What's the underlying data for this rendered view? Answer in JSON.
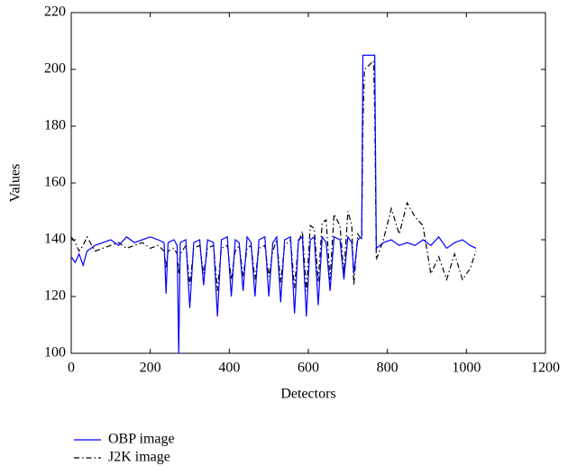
{
  "chart_data": {
    "type": "line",
    "x_label": "Detectors",
    "y_label": "Values",
    "x": [
      0,
      10,
      20,
      30,
      40,
      60,
      80,
      100,
      120,
      140,
      160,
      180,
      200,
      220,
      235,
      240,
      245,
      260,
      268,
      272,
      276,
      290,
      300,
      310,
      325,
      335,
      345,
      360,
      370,
      380,
      395,
      405,
      415,
      425,
      435,
      445,
      455,
      465,
      475,
      490,
      500,
      510,
      520,
      530,
      540,
      555,
      565,
      575,
      585,
      595,
      605,
      615,
      625,
      635,
      645,
      655,
      665,
      680,
      690,
      700,
      710,
      715,
      725,
      735,
      738,
      742,
      765,
      768,
      772,
      790,
      810,
      830,
      850,
      870,
      890,
      910,
      930,
      950,
      970,
      990,
      1010,
      1024
    ],
    "series": [
      {
        "name": "OBP image",
        "color": "#0000ff",
        "dash": "solid",
        "values": [
          134,
          132,
          135,
          131,
          136,
          138,
          139,
          140,
          138,
          141,
          139,
          140,
          141,
          140,
          139,
          121,
          139,
          140,
          138,
          100,
          139,
          140,
          116,
          139,
          140,
          124,
          140,
          139,
          113,
          140,
          141,
          120,
          140,
          139,
          122,
          141,
          139,
          120,
          140,
          141,
          120,
          139,
          141,
          118,
          140,
          141,
          114,
          140,
          141,
          113,
          140,
          141,
          117,
          141,
          139,
          122,
          141,
          140,
          126,
          141,
          139,
          128,
          140,
          141,
          205,
          205,
          205,
          205,
          137,
          139,
          140,
          138,
          139,
          138,
          140,
          138,
          141,
          137,
          139,
          140,
          138,
          137
        ]
      },
      {
        "name": "J2K image",
        "color": "#000000",
        "dash": "dashdot",
        "values": [
          141,
          139,
          136,
          138,
          141,
          136,
          137,
          138,
          139,
          137,
          138,
          139,
          137,
          138,
          136,
          130,
          136,
          137,
          135,
          128,
          135,
          138,
          124,
          137,
          138,
          128,
          137,
          138,
          122,
          137,
          138,
          126,
          136,
          138,
          127,
          137,
          138,
          126,
          137,
          138,
          127,
          136,
          140,
          125,
          138,
          140,
          123,
          139,
          143,
          122,
          145,
          144,
          125,
          146,
          147,
          126,
          149,
          145,
          128,
          150,
          145,
          124,
          142,
          140,
          180,
          200,
          203,
          185,
          133,
          140,
          151,
          142,
          153,
          148,
          145,
          128,
          134,
          126,
          135,
          126,
          130,
          136
        ]
      }
    ],
    "xlim": [
      0,
      1200
    ],
    "xticks": [
      0,
      200,
      400,
      600,
      800,
      1000,
      1200
    ],
    "ylim": [
      100,
      220
    ],
    "yticks": [
      100,
      120,
      140,
      160,
      180,
      200,
      220
    ],
    "grid": false,
    "legend": "below"
  }
}
